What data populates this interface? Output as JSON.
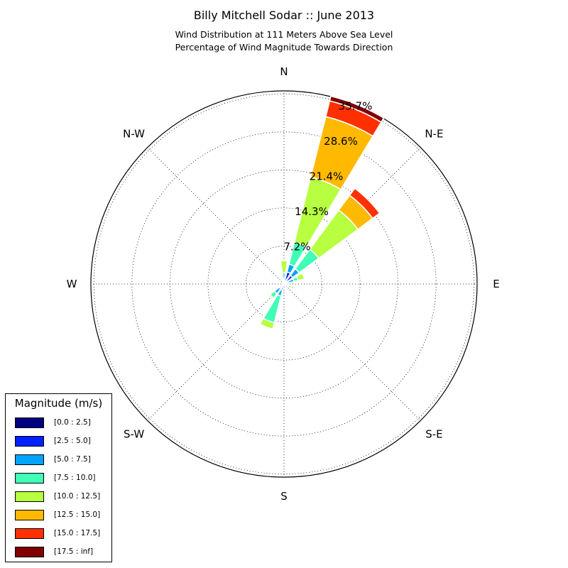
{
  "chart_data": {
    "type": "windrose",
    "title": "Billy Mitchell Sodar :: June 2013",
    "subtitle_lines": [
      "Wind Distribution at 111 Meters Above Sea Level",
      "Percentage of Wind Magnitude Towards Direction"
    ],
    "direction_labels": [
      "N",
      "N-E",
      "E",
      "S-E",
      "S",
      "S-W",
      "W",
      "N-W"
    ],
    "radial_ticks": [
      "7.2%",
      "14.3%",
      "21.4%",
      "28.6%",
      "35.7%"
    ],
    "radial_max": 35.7,
    "legend_title": "Magnitude (m/s)",
    "bins": [
      {
        "label": "[0.0 : 2.5]",
        "color": "#000080"
      },
      {
        "label": "[2.5 : 5.0]",
        "color": "#0020ff"
      },
      {
        "label": "[5.0 : 7.5]",
        "color": "#00a4ff"
      },
      {
        "label": "[7.5 : 10.0]",
        "color": "#40ffb7"
      },
      {
        "label": "[10.0 : 12.5]",
        "color": "#b7ff40"
      },
      {
        "label": "[12.5 : 15.0]",
        "color": "#ffb900"
      },
      {
        "label": "[15.0 : 17.5]",
        "color": "#ff3000"
      },
      {
        "label": "[17.5 : inf]",
        "color": "#800000"
      }
    ],
    "sectors": [
      {
        "direction_deg": 0,
        "cumulative": [
          0.2,
          0.5,
          0.9,
          2.1,
          4.3,
          4.3,
          4.3,
          4.3
        ]
      },
      {
        "direction_deg": 22.5,
        "cumulative": [
          0.4,
          2.3,
          3.8,
          8.0,
          20.4,
          31.9,
          34.9,
          35.8
        ]
      },
      {
        "direction_deg": 45,
        "cumulative": [
          0.4,
          2.0,
          3.5,
          8.0,
          17.0,
          20.4,
          22.0,
          22.0
        ]
      },
      {
        "direction_deg": 67.5,
        "cumulative": [
          0.2,
          0.6,
          1.9,
          2.7,
          3.9,
          3.9,
          3.9,
          3.9
        ]
      },
      {
        "direction_deg": 90,
        "cumulative": [
          0.2,
          0.9,
          0.9,
          0.9,
          0.9,
          0.9,
          0.9,
          0.9
        ]
      },
      {
        "direction_deg": 112.5,
        "cumulative": [
          0.3,
          1.0,
          1.0,
          1.4,
          1.9,
          1.9,
          1.9,
          1.9
        ]
      },
      {
        "direction_deg": 135,
        "cumulative": [
          0.2,
          0.5,
          0.5,
          0.5,
          0.5,
          0.5,
          0.5,
          0.5
        ]
      },
      {
        "direction_deg": 180,
        "cumulative": [
          0.2,
          0.2,
          0.2,
          0.2,
          0.2,
          0.2,
          0.2,
          0.2
        ]
      },
      {
        "direction_deg": 202.5,
        "cumulative": [
          0.4,
          1.2,
          2.3,
          7.4,
          8.6,
          8.6,
          8.6,
          8.6
        ]
      },
      {
        "direction_deg": 225,
        "cumulative": [
          0.4,
          1.0,
          2.2,
          3.2,
          3.5,
          3.5,
          3.5,
          3.5
        ]
      },
      {
        "direction_deg": 247.5,
        "cumulative": [
          0.2,
          0.3,
          0.4,
          0.4,
          0.4,
          0.4,
          0.4,
          0.4
        ]
      },
      {
        "direction_deg": 315,
        "cumulative": [
          0.3,
          0.3,
          0.3,
          0.3,
          0.3,
          0.3,
          0.3,
          0.3
        ]
      },
      {
        "direction_deg": 337.5,
        "cumulative": [
          0.4,
          0.4,
          1.0,
          1.0,
          1.0,
          1.0,
          1.0,
          1.0
        ]
      }
    ]
  }
}
